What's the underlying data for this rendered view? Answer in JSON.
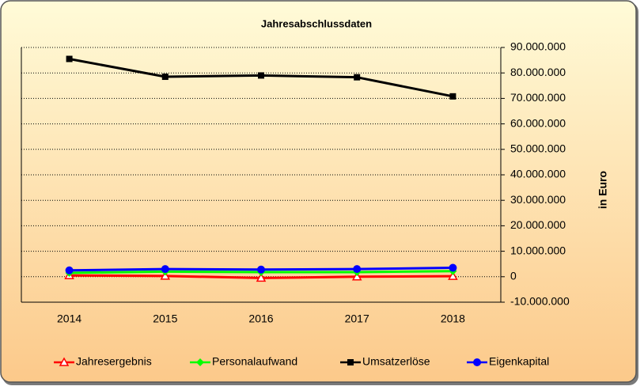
{
  "chart_data": {
    "type": "line",
    "title": "Jahresabschlussdaten",
    "y_axis_label": "in Euro",
    "categories": [
      "2014",
      "2015",
      "2016",
      "2017",
      "2018"
    ],
    "series": [
      {
        "name": "Jahresergebnis",
        "color": "#ff0000",
        "marker": "triangle-open",
        "values": [
          500000,
          300000,
          -500000,
          0,
          200000
        ]
      },
      {
        "name": "Personalaufwand",
        "color": "#00ff00",
        "marker": "diamond",
        "values": [
          1500000,
          2000000,
          1800000,
          1800000,
          2200000
        ]
      },
      {
        "name": "Umsatzerlöse",
        "color": "#000000",
        "marker": "square",
        "values": [
          85500000,
          78500000,
          79000000,
          78300000,
          70800000
        ]
      },
      {
        "name": "Eigenkapital",
        "color": "#0000ff",
        "marker": "circle",
        "values": [
          2500000,
          3000000,
          2800000,
          3000000,
          3500000
        ]
      }
    ],
    "ylim": [
      -10000000,
      90000000
    ],
    "yticks": [
      {
        "value": -10000000,
        "label": "-10.000.000"
      },
      0,
      {
        "value": 10000000,
        "label": "10.000.000"
      },
      {
        "value": 20000000,
        "label": "20.000.000"
      },
      {
        "value": 30000000,
        "label": "30.000.000"
      },
      {
        "value": 40000000,
        "label": "40.000.000"
      },
      {
        "value": 50000000,
        "label": "50.000.000"
      },
      {
        "value": 60000000,
        "label": "60.000.000"
      },
      {
        "value": 70000000,
        "label": "70.000.000"
      },
      {
        "value": 80000000,
        "label": "80.000.000"
      },
      {
        "value": 90000000,
        "label": "90.000.000"
      }
    ],
    "y_axis_side": "right",
    "grid": true,
    "legend": "bottom"
  }
}
